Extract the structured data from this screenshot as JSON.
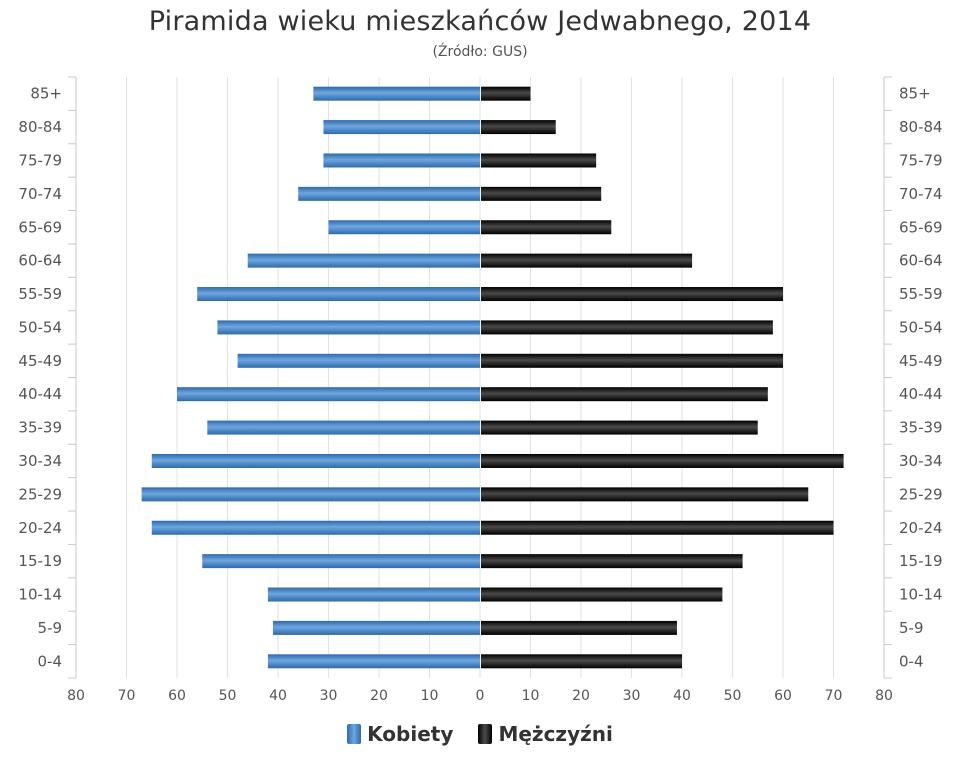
{
  "chart_data": {
    "type": "bar",
    "orientation": "horizontal-population-pyramid",
    "title": "Piramida wieku mieszkańców Jedwabnego, 2014",
    "subtitle": "(Źródło: GUS)",
    "categories": [
      "85+",
      "80-84",
      "75-79",
      "70-74",
      "65-69",
      "60-64",
      "55-59",
      "50-54",
      "45-49",
      "40-44",
      "35-39",
      "30-34",
      "25-29",
      "20-24",
      "15-19",
      "10-14",
      "5-9",
      "0-4"
    ],
    "series": [
      {
        "name": "Kobiety",
        "color": "#4a86c5",
        "values": [
          33,
          31,
          31,
          36,
          30,
          46,
          56,
          52,
          48,
          60,
          54,
          65,
          67,
          65,
          55,
          42,
          41,
          42
        ]
      },
      {
        "name": "Mężczyźni",
        "color": "#1a1a1a",
        "values": [
          10,
          15,
          23,
          24,
          26,
          42,
          60,
          58,
          60,
          57,
          55,
          72,
          65,
          70,
          52,
          48,
          39,
          40
        ]
      }
    ],
    "x_ticks": [
      "80",
      "70",
      "60",
      "50",
      "40",
      "30",
      "20",
      "10",
      "0",
      "10",
      "20",
      "30",
      "40",
      "50",
      "60",
      "70",
      "80"
    ],
    "xlim": [
      -80,
      80
    ],
    "grid": true,
    "legend_position": "bottom"
  }
}
